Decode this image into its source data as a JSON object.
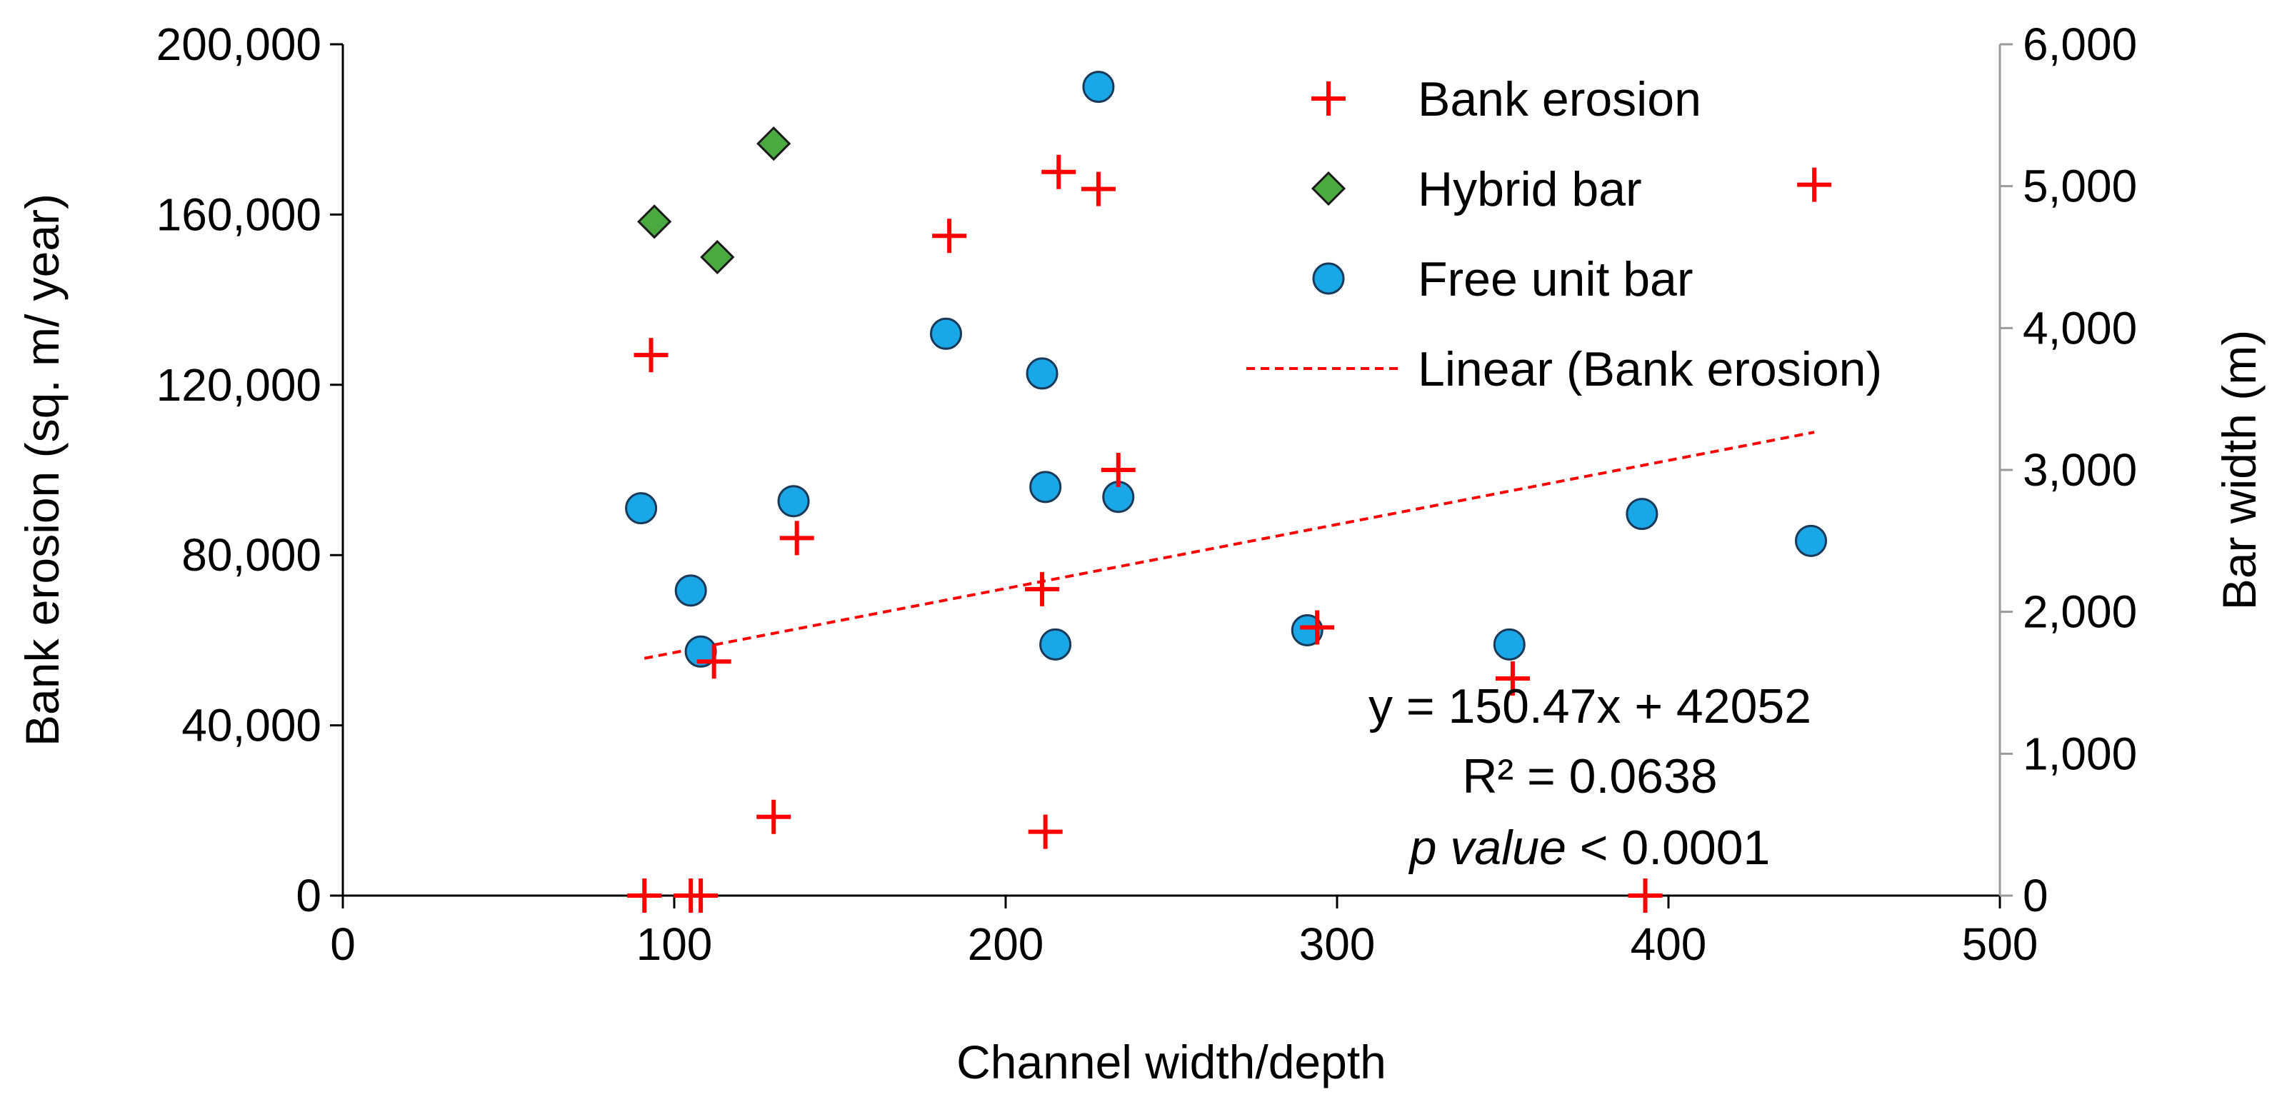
{
  "chart_data": {
    "type": "scatter",
    "title": "",
    "xlabel": "Channel width/depth",
    "ylabel": "Bank erosion (sq. m/ year)",
    "y2label": "Bar width (m)",
    "xlim": [
      0,
      500
    ],
    "ylim": [
      0,
      200000
    ],
    "y2lim": [
      0,
      6000
    ],
    "x_ticks": [
      "0",
      "100",
      "200",
      "300",
      "400",
      "500"
    ],
    "y_ticks": [
      "0",
      "40,000",
      "80,000",
      "120,000",
      "160,000",
      "200,000"
    ],
    "y2_ticks": [
      "0",
      "1,000",
      "2,000",
      "3,000",
      "4,000",
      "5,000",
      "6,000"
    ],
    "grid": false,
    "legend_position": "top-right",
    "series": [
      {
        "name": "Bank erosion",
        "marker": "plus",
        "color": "#ff0000",
        "axis": "left",
        "points": [
          [
            91,
            0
          ],
          [
            105,
            0
          ],
          [
            108,
            0
          ],
          [
            393,
            0
          ],
          [
            212,
            15000
          ],
          [
            130,
            18500
          ],
          [
            112,
            55000
          ],
          [
            353,
            51000
          ],
          [
            294,
            63000
          ],
          [
            211,
            72000
          ],
          [
            137,
            84000
          ],
          [
            234,
            100000
          ],
          [
            93,
            127000
          ],
          [
            183,
            155000
          ],
          [
            216,
            170000
          ],
          [
            228,
            166000
          ],
          [
            444,
            167000
          ]
        ]
      },
      {
        "name": "Hybrid bar",
        "marker": "diamond",
        "color": "#4aaa3f",
        "axis": "right",
        "points": [
          [
            94,
            4750
          ],
          [
            113,
            4500
          ],
          [
            130,
            5300
          ]
        ]
      },
      {
        "name": "Free unit bar",
        "marker": "circle",
        "color": "#1aa7e8",
        "axis": "right",
        "points": [
          [
            90,
            2730
          ],
          [
            105,
            2150
          ],
          [
            108,
            1720
          ],
          [
            136,
            2780
          ],
          [
            182,
            3960
          ],
          [
            211,
            3680
          ],
          [
            212,
            2880
          ],
          [
            215,
            1770
          ],
          [
            228,
            5700
          ],
          [
            234,
            2810
          ],
          [
            291,
            1870
          ],
          [
            352,
            1770
          ],
          [
            392,
            2690
          ],
          [
            443,
            2500
          ]
        ]
      }
    ],
    "trendline": {
      "name": "Linear (Bank erosion)",
      "color": "#ff0000",
      "style": "dashed",
      "slope": 150.47,
      "intercept": 42052,
      "x_range": [
        91,
        444
      ]
    },
    "annotations": {
      "equation": "y = 150.47x + 42052",
      "r_squared_label": "R² = 0.0638",
      "p_value_italic": "p value",
      "p_value_rest": " < 0.0001"
    }
  }
}
